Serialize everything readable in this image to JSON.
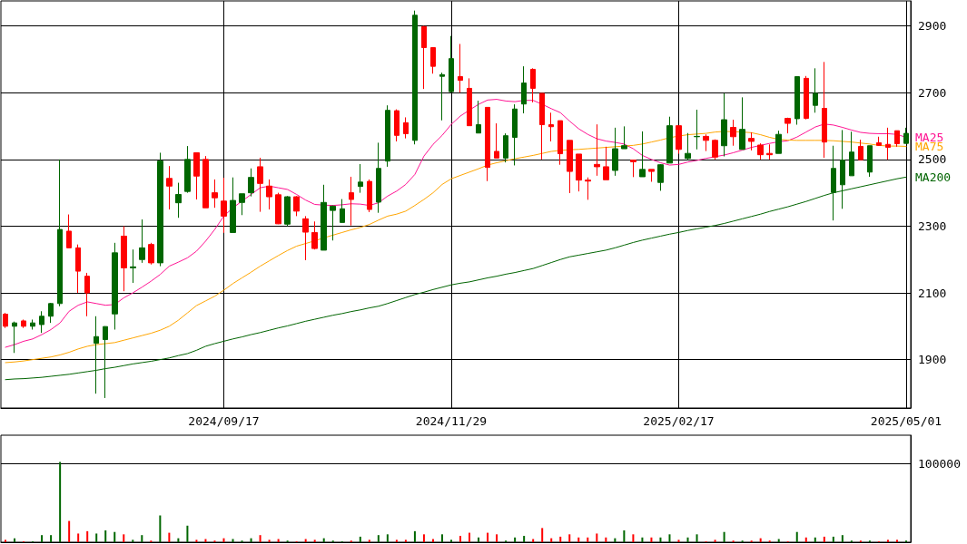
{
  "chart_data": [
    {
      "type": "candlestick",
      "categories": [
        null,
        null,
        null,
        null,
        null,
        null,
        null,
        null,
        null,
        null,
        null,
        null,
        null,
        null,
        null,
        null,
        null,
        null,
        null,
        null,
        null,
        null,
        null,
        null,
        "2024/09/17",
        null,
        null,
        null,
        null,
        null,
        null,
        null,
        null,
        null,
        null,
        null,
        null,
        null,
        null,
        null,
        null,
        null,
        null,
        null,
        null,
        null,
        null,
        null,
        null,
        "2024/11/29",
        null,
        null,
        null,
        null,
        null,
        null,
        null,
        null,
        null,
        null,
        null,
        null,
        null,
        null,
        null,
        null,
        null,
        null,
        null,
        null,
        null,
        null,
        null,
        null,
        "2025/02/17",
        null,
        null,
        null,
        null,
        null,
        null,
        null,
        null,
        null,
        null,
        null,
        null,
        null,
        null,
        null,
        null,
        null,
        null,
        null,
        null,
        null,
        null,
        null,
        null,
        "2025/05/01"
      ],
      "ohlc": [
        [
          2036,
          2040,
          1995,
          2000
        ],
        [
          2000,
          2014,
          1920,
          2010
        ],
        [
          2016,
          2020,
          1995,
          2000
        ],
        [
          2000,
          2020,
          1990,
          2010
        ],
        [
          2005,
          2045,
          1980,
          2030
        ],
        [
          2030,
          2070,
          2010,
          2068
        ],
        [
          2068,
          2500,
          2060,
          2290
        ],
        [
          2285,
          2335,
          2235,
          2235
        ],
        [
          2235,
          2245,
          2100,
          2165
        ],
        [
          2150,
          2160,
          2030,
          2100
        ],
        [
          1949,
          2030,
          1798,
          1969
        ],
        [
          1960,
          2000,
          1785,
          1999
        ],
        [
          2037,
          2250,
          1990,
          2220
        ],
        [
          2270,
          2300,
          2105,
          2175
        ],
        [
          2175,
          2230,
          2130,
          2178
        ],
        [
          2200,
          2320,
          2190,
          2235
        ],
        [
          2245,
          2250,
          2185,
          2190
        ],
        [
          2190,
          2520,
          2180,
          2495
        ],
        [
          2443,
          2480,
          2350,
          2420
        ],
        [
          2370,
          2430,
          2325,
          2395
        ],
        [
          2404,
          2540,
          2400,
          2500
        ],
        [
          2520,
          2520,
          2380,
          2450
        ],
        [
          2500,
          2510,
          2355,
          2355
        ],
        [
          2400,
          2440,
          2355,
          2385
        ],
        [
          2375,
          2445,
          2280,
          2330
        ],
        [
          2281,
          2446,
          2281,
          2377
        ],
        [
          2371,
          2397,
          2333,
          2397
        ],
        [
          2400,
          2473,
          2389,
          2446
        ],
        [
          2478,
          2505,
          2343,
          2428
        ],
        [
          2420,
          2440,
          2350,
          2388
        ],
        [
          2394,
          2400,
          2306,
          2307
        ],
        [
          2306,
          2390,
          2300,
          2388
        ],
        [
          2388,
          2390,
          2330,
          2345
        ],
        [
          2322,
          2330,
          2198,
          2282
        ],
        [
          2281,
          2314,
          2230,
          2233
        ],
        [
          2228,
          2424,
          2228,
          2371
        ],
        [
          2347,
          2362,
          2257,
          2360
        ],
        [
          2311,
          2381,
          2311,
          2352
        ],
        [
          2400,
          2448,
          2302,
          2380
        ],
        [
          2419,
          2486,
          2400,
          2432
        ],
        [
          2434,
          2440,
          2342,
          2350
        ],
        [
          2372,
          2550,
          2340,
          2473
        ],
        [
          2495,
          2662,
          2478,
          2647
        ],
        [
          2646,
          2650,
          2554,
          2572
        ],
        [
          2610,
          2626,
          2563,
          2577
        ],
        [
          2557,
          2946,
          2545,
          2932
        ],
        [
          2898,
          2900,
          2711,
          2835
        ],
        [
          2835,
          2835,
          2757,
          2779
        ],
        [
          2749,
          2760,
          2617,
          2754
        ],
        [
          2703,
          2870,
          2700,
          2802
        ],
        [
          2748,
          2846,
          2700,
          2737
        ],
        [
          2713,
          2743,
          2601,
          2601
        ],
        [
          2579,
          2676,
          2579,
          2604
        ],
        [
          2656,
          2656,
          2435,
          2476
        ],
        [
          2524,
          2608,
          2504,
          2504
        ],
        [
          2504,
          2578,
          2491,
          2571
        ],
        [
          2566,
          2665,
          2482,
          2651
        ],
        [
          2666,
          2779,
          2638,
          2729
        ],
        [
          2770,
          2773,
          2671,
          2713
        ],
        [
          2698,
          2698,
          2500,
          2604
        ],
        [
          2604,
          2640,
          2554,
          2598
        ],
        [
          2616,
          2616,
          2484,
          2517
        ],
        [
          2557,
          2557,
          2399,
          2464
        ],
        [
          2516,
          2516,
          2404,
          2438
        ],
        [
          2438,
          2446,
          2379,
          2435
        ],
        [
          2485,
          2605,
          2451,
          2478
        ],
        [
          2478,
          2538,
          2439,
          2439
        ],
        [
          2467,
          2595,
          2451,
          2532
        ],
        [
          2532,
          2599,
          2532,
          2541
        ],
        [
          2498,
          2498,
          2447,
          2493
        ],
        [
          2448,
          2584,
          2448,
          2470
        ],
        [
          2470,
          2470,
          2433,
          2464
        ],
        [
          2431,
          2486,
          2406,
          2484
        ],
        [
          2489,
          2628,
          2489,
          2601
        ],
        [
          2601,
          2601,
          2517,
          2530
        ],
        [
          2503,
          2579,
          2498,
          2518
        ],
        [
          2568,
          2649,
          2530,
          2569
        ],
        [
          2569,
          2575,
          2525,
          2557
        ],
        [
          2557,
          2560,
          2500,
          2507
        ],
        [
          2541,
          2698,
          2509,
          2619
        ],
        [
          2596,
          2619,
          2541,
          2568
        ],
        [
          2530,
          2686,
          2530,
          2590
        ],
        [
          2563,
          2581,
          2527,
          2554
        ],
        [
          2543,
          2548,
          2500,
          2514
        ],
        [
          2518,
          2545,
          2500,
          2514
        ],
        [
          2518,
          2586,
          2518,
          2575
        ],
        [
          2623,
          2625,
          2578,
          2608
        ],
        [
          2622,
          2748,
          2604,
          2748
        ],
        [
          2743,
          2750,
          2620,
          2623
        ],
        [
          2662,
          2773,
          2640,
          2698
        ],
        [
          2653,
          2792,
          2505,
          2552
        ],
        [
          2401,
          2541,
          2317,
          2473
        ],
        [
          2424,
          2588,
          2352,
          2498
        ],
        [
          2451,
          2583,
          2451,
          2522
        ],
        [
          2539,
          2559,
          2499,
          2499
        ],
        [
          2462,
          2541,
          2448,
          2541
        ],
        [
          2550,
          2568,
          2541,
          2542
        ],
        [
          2545,
          2595,
          2499,
          2536
        ],
        [
          2586,
          2586,
          2538,
          2547
        ],
        [
          2548,
          2595,
          2548,
          2578
        ]
      ],
      "colors": [
        "#ff0000",
        "#006600",
        "#ff0000",
        "#006600",
        "#006600",
        "#006600",
        "#006600",
        "#ff0000",
        "#ff0000",
        "#ff0000",
        "#006600",
        "#006600",
        "#006600",
        "#ff0000",
        "#006600",
        "#006600",
        "#ff0000",
        "#006600",
        "#ff0000",
        "#006600",
        "#006600",
        "#ff0000",
        "#ff0000",
        "#ff0000",
        "#ff0000",
        "#006600",
        "#006600",
        "#006600",
        "#ff0000",
        "#ff0000",
        "#ff0000",
        "#006600",
        "#ff0000",
        "#ff0000",
        "#ff0000",
        "#006600",
        "#006600",
        "#006600",
        "#ff0000",
        "#006600",
        "#ff0000",
        "#006600",
        "#006600",
        "#ff0000",
        "#ff0000",
        "#006600",
        "#ff0000",
        "#ff0000",
        "#006600",
        "#006600",
        "#ff0000",
        "#ff0000",
        "#006600",
        "#ff0000",
        "#ff0000",
        "#006600",
        "#006600",
        "#006600",
        "#ff0000",
        "#ff0000",
        "#ff0000",
        "#ff0000",
        "#ff0000",
        "#ff0000",
        "#ff0000",
        "#ff0000",
        "#ff0000",
        "#006600",
        "#006600",
        "#ff0000",
        "#006600",
        "#ff0000",
        "#006600",
        "#006600",
        "#ff0000",
        "#006600",
        "#006600",
        "#ff0000",
        "#ff0000",
        "#006600",
        "#ff0000",
        "#006600",
        "#ff0000",
        "#ff0000",
        "#ff0000",
        "#006600",
        "#ff0000",
        "#006600",
        "#ff0000",
        "#006600",
        "#ff0000",
        "#006600",
        "#006600",
        "#006600",
        "#ff0000",
        "#006600",
        "#ff0000",
        "#ff0000",
        "#ff0000",
        "#006600"
      ],
      "series": [
        {
          "type": "line",
          "name": "MA25",
          "color": "#ff1493",
          "values": [
            1937,
            1945,
            1955,
            1962,
            1975,
            1990,
            2010,
            2045,
            2063,
            2073,
            2068,
            2063,
            2065,
            2085,
            2100,
            2117,
            2135,
            2155,
            2180,
            2192,
            2205,
            2225,
            2255,
            2290,
            2330,
            2355,
            2375,
            2395,
            2415,
            2420,
            2415,
            2410,
            2395,
            2378,
            2365,
            2363,
            2362,
            2364,
            2367,
            2366,
            2362,
            2370,
            2390,
            2405,
            2425,
            2455,
            2510,
            2545,
            2572,
            2605,
            2630,
            2648,
            2665,
            2678,
            2680,
            2675,
            2673,
            2677,
            2677,
            2665,
            2652,
            2640,
            2615,
            2592,
            2575,
            2562,
            2555,
            2551,
            2546,
            2532,
            2512,
            2500,
            2490,
            2483,
            2485,
            2492,
            2497,
            2503,
            2508,
            2513,
            2520,
            2528,
            2536,
            2542,
            2548,
            2553,
            2556,
            2567,
            2582,
            2597,
            2606,
            2603,
            2596,
            2588,
            2581,
            2578,
            2577,
            2577,
            2575,
            2566
          ]
        },
        {
          "type": "line",
          "name": "MA75",
          "color": "#ffa500",
          "values": [
            1891,
            1893,
            1896,
            1900,
            1904,
            1908,
            1914,
            1922,
            1932,
            1940,
            1945,
            1948,
            1951,
            1958,
            1965,
            1972,
            1979,
            1988,
            2000,
            2018,
            2040,
            2062,
            2076,
            2090,
            2108,
            2128,
            2145,
            2162,
            2180,
            2196,
            2212,
            2227,
            2240,
            2248,
            2256,
            2265,
            2273,
            2281,
            2289,
            2296,
            2305,
            2318,
            2330,
            2336,
            2345,
            2362,
            2380,
            2400,
            2425,
            2442,
            2452,
            2462,
            2472,
            2483,
            2490,
            2496,
            2502,
            2507,
            2512,
            2518,
            2524,
            2527,
            2529,
            2530,
            2532,
            2534,
            2536,
            2538,
            2540,
            2542,
            2546,
            2552,
            2558,
            2565,
            2570,
            2574,
            2576,
            2578,
            2582,
            2584,
            2583,
            2582,
            2580,
            2574,
            2566,
            2560,
            2558,
            2557,
            2557,
            2557,
            2557,
            2556,
            2554,
            2552,
            2549,
            2546,
            2542,
            2540,
            2540,
            2539
          ]
        },
        {
          "type": "line",
          "name": "MA200",
          "color": "#006400",
          "values": [
            1840,
            1842,
            1843,
            1845,
            1847,
            1850,
            1853,
            1856,
            1860,
            1864,
            1868,
            1873,
            1877,
            1882,
            1887,
            1891,
            1895,
            1900,
            1905,
            1912,
            1918,
            1928,
            1940,
            1948,
            1955,
            1962,
            1968,
            1975,
            1981,
            1988,
            1995,
            2001,
            2008,
            2015,
            2021,
            2027,
            2033,
            2038,
            2044,
            2049,
            2055,
            2060,
            2068,
            2077,
            2086,
            2095,
            2102,
            2110,
            2117,
            2124,
            2129,
            2133,
            2139,
            2145,
            2150,
            2156,
            2161,
            2167,
            2173,
            2182,
            2191,
            2200,
            2208,
            2213,
            2218,
            2223,
            2228,
            2235,
            2243,
            2251,
            2258,
            2264,
            2270,
            2276,
            2281,
            2287,
            2292,
            2297,
            2302,
            2308,
            2315,
            2322,
            2329,
            2336,
            2344,
            2351,
            2358,
            2366,
            2374,
            2383,
            2392,
            2400,
            2406,
            2412,
            2418,
            2424,
            2430,
            2436,
            2442,
            2447
          ]
        }
      ],
      "ylim": [
        1755,
        2975
      ],
      "yticks": [
        1900,
        2100,
        2300,
        2500,
        2700,
        2900
      ],
      "grid": true,
      "legend": false,
      "marker": "none"
    },
    {
      "type": "bar",
      "categories": [
        null,
        null,
        null,
        null,
        null,
        null,
        null,
        null,
        null,
        null,
        null,
        null,
        null,
        null,
        null,
        null,
        null,
        null,
        null,
        null,
        null,
        null,
        null,
        null,
        null,
        null,
        null,
        null,
        null,
        null,
        null,
        null,
        null,
        null,
        null,
        null,
        null,
        null,
        null,
        null,
        null,
        null,
        null,
        null,
        null,
        null,
        null,
        null,
        null,
        null,
        null,
        null,
        null,
        null,
        null,
        null,
        null,
        null,
        null,
        null,
        null,
        null,
        null,
        null,
        null,
        null,
        null,
        null,
        null,
        null,
        null,
        null,
        null,
        null,
        null,
        null,
        null,
        null,
        null,
        null,
        null,
        null,
        null,
        null,
        null,
        null,
        null,
        null,
        null,
        null,
        null,
        null,
        null,
        null,
        null,
        null,
        null,
        null,
        null,
        null
      ],
      "values": [
        3000,
        5000,
        1000,
        1000,
        9000,
        9000,
        102000,
        27000,
        11000,
        14000,
        11000,
        15000,
        13000,
        10000,
        3000,
        9000,
        2000,
        34000,
        12000,
        5000,
        21000,
        3000,
        4000,
        2000,
        5000,
        4000,
        2000,
        5000,
        9000,
        3000,
        4000,
        2000,
        1000,
        4000,
        3000,
        5000,
        2000,
        1000,
        2000,
        7000,
        3000,
        9000,
        10000,
        3000,
        3000,
        14000,
        10000,
        4000,
        10000,
        3000,
        8000,
        12000,
        6000,
        12000,
        10000,
        2000,
        6000,
        8000,
        4000,
        18000,
        5000,
        7000,
        10000,
        6000,
        6000,
        11000,
        6000,
        5000,
        15000,
        10000,
        6000,
        6000,
        6000,
        10000,
        3000,
        6000,
        10000,
        1000,
        3000,
        13000,
        2000,
        2000,
        2000,
        5000,
        2000,
        4000,
        1000,
        13000,
        6000,
        6000,
        7000,
        7000,
        9000,
        2000,
        2000,
        2000,
        1000,
        3000,
        3000,
        2000
      ],
      "colors": [
        "#ff0000",
        "#006600",
        "#ff0000",
        "#006600",
        "#006600",
        "#006600",
        "#006600",
        "#ff0000",
        "#ff0000",
        "#ff0000",
        "#006600",
        "#006600",
        "#006600",
        "#ff0000",
        "#006600",
        "#006600",
        "#ff0000",
        "#006600",
        "#ff0000",
        "#006600",
        "#006600",
        "#ff0000",
        "#ff0000",
        "#ff0000",
        "#ff0000",
        "#006600",
        "#006600",
        "#006600",
        "#ff0000",
        "#ff0000",
        "#ff0000",
        "#006600",
        "#ff0000",
        "#ff0000",
        "#ff0000",
        "#006600",
        "#006600",
        "#006600",
        "#ff0000",
        "#006600",
        "#ff0000",
        "#006600",
        "#006600",
        "#ff0000",
        "#ff0000",
        "#006600",
        "#ff0000",
        "#ff0000",
        "#006600",
        "#006600",
        "#ff0000",
        "#ff0000",
        "#006600",
        "#ff0000",
        "#ff0000",
        "#006600",
        "#006600",
        "#006600",
        "#ff0000",
        "#ff0000",
        "#ff0000",
        "#ff0000",
        "#ff0000",
        "#ff0000",
        "#ff0000",
        "#ff0000",
        "#ff0000",
        "#006600",
        "#006600",
        "#ff0000",
        "#006600",
        "#ff0000",
        "#006600",
        "#006600",
        "#ff0000",
        "#006600",
        "#006600",
        "#ff0000",
        "#ff0000",
        "#006600",
        "#ff0000",
        "#006600",
        "#ff0000",
        "#ff0000",
        "#ff0000",
        "#006600",
        "#ff0000",
        "#006600",
        "#ff0000",
        "#006600",
        "#ff0000",
        "#006600",
        "#006600",
        "#006600",
        "#ff0000",
        "#006600",
        "#ff0000",
        "#ff0000",
        "#ff0000",
        "#006600"
      ],
      "ylim": [
        0,
        136000
      ],
      "yticks": [
        100000
      ],
      "tick_labels": "y",
      "grid": "y"
    }
  ]
}
